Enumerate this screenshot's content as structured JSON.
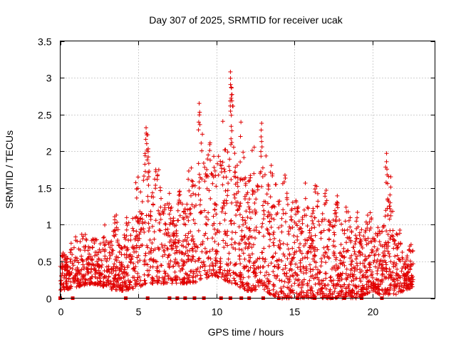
{
  "chart_data": {
    "type": "scatter",
    "title": "Day 307 of 2025, SRMTID for receiver ucak",
    "xlabel": "GPS time / hours",
    "ylabel": "SRMTID / TECUs",
    "xlim": [
      0,
      24
    ],
    "ylim": [
      0,
      3.5
    ],
    "xticks": [
      0,
      5,
      10,
      15,
      20
    ],
    "yticks": [
      0,
      0.5,
      1,
      1.5,
      2,
      2.5,
      3,
      3.5
    ],
    "xtick_labels": [
      "0",
      "5",
      "10",
      "15",
      "20"
    ],
    "ytick_labels": [
      "0",
      "0.5",
      "1",
      "1.5",
      "2",
      "2.5",
      "3",
      "3.5"
    ],
    "grid": true,
    "marker": "+",
    "color": "#e00000",
    "series": [
      {
        "name": "SRMTID",
        "envelope": [
          {
            "x": 0.0,
            "low": 0.1,
            "high": 0.55
          },
          {
            "x": 1.0,
            "low": 0.15,
            "high": 1.0
          },
          {
            "x": 2.0,
            "low": 0.2,
            "high": 0.9
          },
          {
            "x": 3.0,
            "low": 0.15,
            "high": 1.05
          },
          {
            "x": 3.5,
            "low": 0.1,
            "high": 1.25
          },
          {
            "x": 4.0,
            "low": 0.1,
            "high": 0.9
          },
          {
            "x": 5.0,
            "low": 0.15,
            "high": 1.75
          },
          {
            "x": 5.5,
            "low": 0.2,
            "high": 2.3
          },
          {
            "x": 6.5,
            "low": 0.2,
            "high": 1.75
          },
          {
            "x": 7.5,
            "low": 0.2,
            "high": 1.4
          },
          {
            "x": 8.5,
            "low": 0.2,
            "high": 2.05
          },
          {
            "x": 9.0,
            "low": 0.25,
            "high": 2.65
          },
          {
            "x": 10.0,
            "low": 0.3,
            "high": 2.3
          },
          {
            "x": 11.0,
            "low": 0.2,
            "high": 3.05
          },
          {
            "x": 12.0,
            "low": 0.1,
            "high": 2.1
          },
          {
            "x": 13.0,
            "low": 0.1,
            "high": 2.4
          },
          {
            "x": 14.0,
            "low": 0.0,
            "high": 1.9
          },
          {
            "x": 15.0,
            "low": 0.0,
            "high": 1.55
          },
          {
            "x": 16.0,
            "low": 0.0,
            "high": 1.6
          },
          {
            "x": 17.0,
            "low": 0.0,
            "high": 1.55
          },
          {
            "x": 18.0,
            "low": 0.0,
            "high": 1.4
          },
          {
            "x": 19.0,
            "low": 0.0,
            "high": 1.2
          },
          {
            "x": 20.0,
            "low": 0.1,
            "high": 1.3
          },
          {
            "x": 20.5,
            "low": 0.05,
            "high": 0.9
          },
          {
            "x": 21.0,
            "low": 0.05,
            "high": 1.95
          },
          {
            "x": 21.5,
            "low": 0.05,
            "high": 1.2
          },
          {
            "x": 22.0,
            "low": 0.1,
            "high": 0.75
          },
          {
            "x": 22.6,
            "low": 0.15,
            "high": 0.75
          }
        ],
        "peaks": [
          {
            "x": 5.5,
            "y": 2.32
          },
          {
            "x": 8.9,
            "y": 2.65
          },
          {
            "x": 10.9,
            "y": 3.08
          },
          {
            "x": 10.95,
            "y": 2.87
          },
          {
            "x": 12.9,
            "y": 2.38
          },
          {
            "x": 20.9,
            "y": 1.97
          }
        ],
        "zero_values_x": [
          0.0,
          0.8,
          4.2,
          5.6,
          7.0,
          7.5,
          8.0,
          8.6,
          9.2,
          10.3,
          10.9,
          11.6,
          12.1,
          13.0,
          14.0,
          15.2,
          16.3,
          17.4,
          18.2,
          19.3,
          20.6
        ]
      }
    ]
  }
}
